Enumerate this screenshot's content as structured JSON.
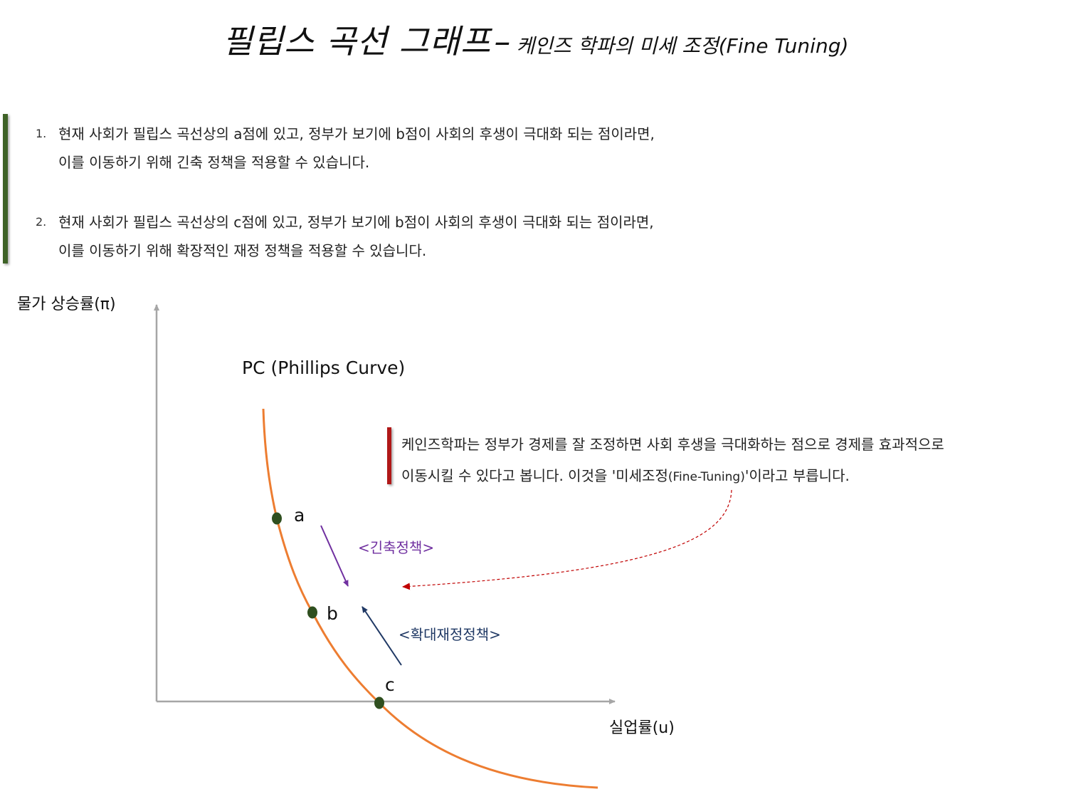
{
  "title": {
    "main": "필립스 곡선 그래프",
    "dash": "–",
    "subtitle": "케인즈 학파의 미세 조정(Fine Tuning)"
  },
  "explanations": [
    {
      "number": "1.",
      "line1": "현재 사회가 필립스 곡선상의 a점에 있고, 정부가 보기에 b점이 사회의 후생이 극대화 되는 점이라면,",
      "line2": "이를 이동하기 위해 긴축 정책을 적용할 수 있습니다."
    },
    {
      "number": "2.",
      "line1": "현재 사회가 필립스 곡선상의 c점에 있고, 정부가 보기에 b점이 사회의 후생이 극대화 되는 점이라면,",
      "line2": "이를 이동하기 위해 확장적인 재정 정책을 적용할 수 있습니다."
    }
  ],
  "note": {
    "line1": "케인즈학파는 정부가 경제를 잘 조정하면 사회 후생을 극대화하는 점으로 경제를 효과적으로",
    "line2_a": "이동시킬 수 있다고 봅니다.  이것을 '미세조정",
    "line2_b": "(Fine-Tuning)",
    "line2_c": "'이라고 부릅니다."
  },
  "diagram": {
    "y_axis_label": "물가 상승률(π)",
    "x_axis_label": "실업률(u)",
    "curve_label": "PC (Phillips Curve)",
    "points": [
      "a",
      "b",
      "c"
    ],
    "contraction_label": "<긴축정책>",
    "expansion_label": "<확대재정정책>",
    "colors": {
      "axis": "#a6a6a6",
      "curve": "#ed7d31",
      "point": "#2f4f1f",
      "contraction_arrow": "#7030a0",
      "expansion_arrow": "#1f3864",
      "dashed_arrow": "#c00000",
      "green_bar": "#3f6327",
      "red_bar": "#b01818"
    }
  }
}
